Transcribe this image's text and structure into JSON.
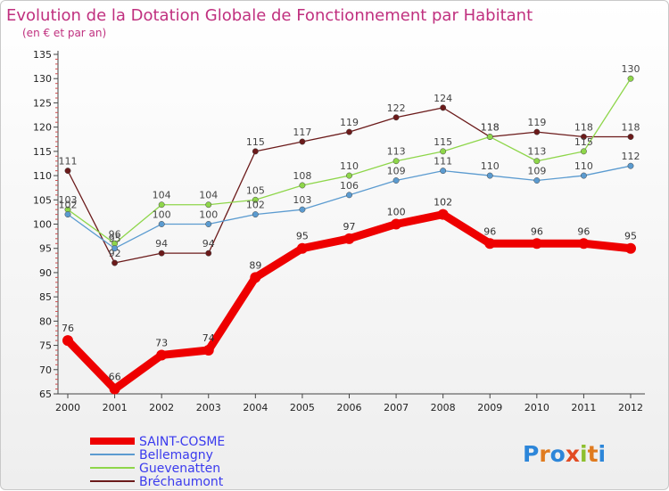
{
  "chart_data": {
    "type": "line",
    "title": "Evolution de la Dotation Globale de Fonctionnement par Habitant",
    "subtitle": "(en € et par an)",
    "xlabel": "",
    "ylabel": "",
    "categories": [
      "2000",
      "2001",
      "2002",
      "2003",
      "2004",
      "2005",
      "2006",
      "2007",
      "2008",
      "2009",
      "2010",
      "2011",
      "2012"
    ],
    "ylim": [
      65,
      135
    ],
    "yticks": [
      65,
      70,
      75,
      80,
      85,
      90,
      95,
      100,
      105,
      110,
      115,
      120,
      125,
      130,
      135
    ],
    "grid": false,
    "legend_position": "bottom-left",
    "series": [
      {
        "name": "SAINT-COSME",
        "color": "#ee0000",
        "values": [
          76,
          66,
          73,
          74,
          89,
          95,
          97,
          100,
          102,
          96,
          96,
          96,
          95
        ]
      },
      {
        "name": "Bellemagny",
        "color": "#5b9bd0",
        "values": [
          102,
          95,
          100,
          100,
          102,
          103,
          106,
          109,
          111,
          110,
          109,
          110,
          112
        ]
      },
      {
        "name": "Guevenatten",
        "color": "#8ed64a",
        "values": [
          103,
          96,
          104,
          104,
          105,
          108,
          110,
          113,
          115,
          118,
          113,
          115,
          130
        ]
      },
      {
        "name": "Bréchaumont",
        "color": "#6b1a1a",
        "values": [
          111,
          92,
          94,
          94,
          115,
          117,
          119,
          122,
          124,
          118,
          119,
          118,
          118
        ]
      }
    ]
  },
  "branding": {
    "logo_text": "Proxiti"
  }
}
